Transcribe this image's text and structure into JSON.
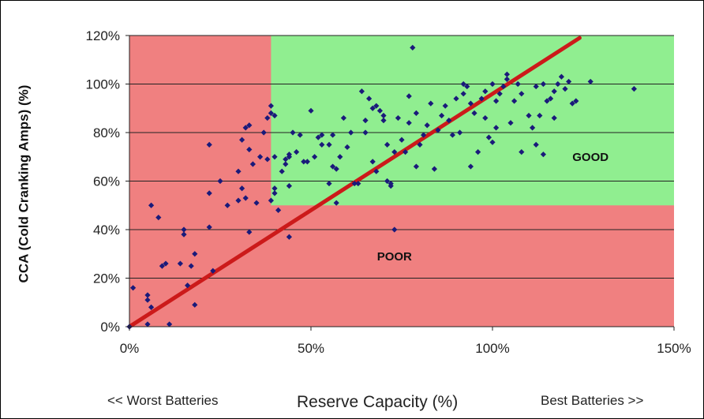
{
  "chart_data": {
    "type": "scatter",
    "ylabel": "CCA (Cold Cranking Amps) (%)",
    "xlabel": "Reserve Capacity (%)",
    "xlabel_left": "<< Worst Batteries",
    "xlabel_right": "Best Batteries >>",
    "xlim": [
      0,
      150
    ],
    "ylim": [
      0,
      120
    ],
    "xticks": [
      "0%",
      "50%",
      "100%",
      "150%"
    ],
    "xtick_values": [
      0,
      50,
      100,
      150
    ],
    "yticks": [
      "0%",
      "20%",
      "40%",
      "60%",
      "80%",
      "100%",
      "120%"
    ],
    "ytick_values": [
      0,
      20,
      40,
      60,
      80,
      100,
      120
    ],
    "grid": "horizontal",
    "regions": [
      {
        "label": "POOR",
        "color": "#f08080",
        "x": [
          0,
          150
        ],
        "y": [
          0,
          120
        ],
        "label_at": [
          73,
          29
        ]
      },
      {
        "label": "GOOD",
        "color": "#90ee90",
        "x": [
          39,
          150
        ],
        "y": [
          50,
          120
        ],
        "label_at": [
          127,
          70
        ]
      }
    ],
    "trendline": {
      "color": "#cc1a1a",
      "from": [
        0,
        0
      ],
      "to": [
        124,
        119
      ]
    },
    "marker_color": "#1a1a7a",
    "points": [
      [
        0,
        0
      ],
      [
        1,
        16
      ],
      [
        5,
        13
      ],
      [
        5,
        11
      ],
      [
        6,
        8
      ],
      [
        5,
        1
      ],
      [
        6,
        50
      ],
      [
        8,
        45
      ],
      [
        9,
        25
      ],
      [
        10,
        26
      ],
      [
        11,
        1
      ],
      [
        14,
        26
      ],
      [
        15,
        38
      ],
      [
        15,
        40
      ],
      [
        16,
        17
      ],
      [
        17,
        25
      ],
      [
        18,
        30
      ],
      [
        18,
        9
      ],
      [
        22,
        41
      ],
      [
        22,
        55
      ],
      [
        22,
        75
      ],
      [
        23,
        23
      ],
      [
        25,
        60
      ],
      [
        27,
        50
      ],
      [
        30,
        52
      ],
      [
        30,
        64
      ],
      [
        31,
        57
      ],
      [
        31,
        77
      ],
      [
        32,
        82
      ],
      [
        32,
        53
      ],
      [
        33,
        73
      ],
      [
        33,
        39
      ],
      [
        33,
        83
      ],
      [
        34,
        67
      ],
      [
        35,
        51
      ],
      [
        36,
        70
      ],
      [
        37,
        80
      ],
      [
        38,
        69
      ],
      [
        38,
        86
      ],
      [
        39,
        91
      ],
      [
        39,
        88
      ],
      [
        40,
        87
      ],
      [
        39,
        52
      ],
      [
        40,
        55
      ],
      [
        41,
        48
      ],
      [
        40,
        57
      ],
      [
        40,
        70
      ],
      [
        42,
        64
      ],
      [
        43,
        67
      ],
      [
        43,
        69
      ],
      [
        44,
        70
      ],
      [
        44,
        71
      ],
      [
        44,
        58
      ],
      [
        44,
        37
      ],
      [
        45,
        80
      ],
      [
        46,
        72
      ],
      [
        47,
        79
      ],
      [
        48,
        68
      ],
      [
        49,
        68
      ],
      [
        50,
        89
      ],
      [
        51,
        70
      ],
      [
        52,
        78
      ],
      [
        53,
        79
      ],
      [
        53,
        75
      ],
      [
        55,
        59
      ],
      [
        55,
        75
      ],
      [
        56,
        79
      ],
      [
        56,
        66
      ],
      [
        57,
        65
      ],
      [
        57,
        51
      ],
      [
        58,
        70
      ],
      [
        59,
        86
      ],
      [
        60,
        74
      ],
      [
        61,
        80
      ],
      [
        62,
        59
      ],
      [
        63,
        59
      ],
      [
        64,
        97
      ],
      [
        65,
        85
      ],
      [
        65,
        80
      ],
      [
        66,
        94
      ],
      [
        67,
        68
      ],
      [
        67,
        90
      ],
      [
        68,
        64
      ],
      [
        68,
        91
      ],
      [
        69,
        89
      ],
      [
        70,
        85
      ],
      [
        70,
        87
      ],
      [
        71,
        75
      ],
      [
        71,
        60
      ],
      [
        72,
        59
      ],
      [
        72,
        58
      ],
      [
        73,
        40
      ],
      [
        73,
        72
      ],
      [
        74,
        86
      ],
      [
        75,
        77
      ],
      [
        76,
        72
      ],
      [
        77,
        84
      ],
      [
        77,
        95
      ],
      [
        78,
        115
      ],
      [
        79,
        66
      ],
      [
        79,
        88
      ],
      [
        80,
        75
      ],
      [
        81,
        79
      ],
      [
        82,
        83
      ],
      [
        83,
        92
      ],
      [
        84,
        65
      ],
      [
        85,
        81
      ],
      [
        86,
        87
      ],
      [
        87,
        91
      ],
      [
        88,
        85
      ],
      [
        89,
        79
      ],
      [
        90,
        94
      ],
      [
        91,
        80
      ],
      [
        92,
        96
      ],
      [
        92,
        100
      ],
      [
        93,
        99
      ],
      [
        94,
        66
      ],
      [
        94,
        92
      ],
      [
        95,
        88
      ],
      [
        96,
        72
      ],
      [
        97,
        94
      ],
      [
        98,
        86
      ],
      [
        98,
        97
      ],
      [
        99,
        78
      ],
      [
        100,
        100
      ],
      [
        100,
        76
      ],
      [
        101,
        82
      ],
      [
        101,
        93
      ],
      [
        102,
        96
      ],
      [
        103,
        99
      ],
      [
        104,
        104
      ],
      [
        104,
        102
      ],
      [
        105,
        84
      ],
      [
        106,
        93
      ],
      [
        107,
        100
      ],
      [
        108,
        96
      ],
      [
        108,
        72
      ],
      [
        110,
        87
      ],
      [
        111,
        82
      ],
      [
        112,
        75
      ],
      [
        112,
        99
      ],
      [
        113,
        87
      ],
      [
        114,
        100
      ],
      [
        114,
        71
      ],
      [
        115,
        93
      ],
      [
        116,
        94
      ],
      [
        117,
        97
      ],
      [
        117,
        86
      ],
      [
        118,
        100
      ],
      [
        119,
        103
      ],
      [
        120,
        98
      ],
      [
        121,
        101
      ],
      [
        122,
        92
      ],
      [
        123,
        93
      ],
      [
        127,
        101
      ],
      [
        139,
        98
      ]
    ]
  }
}
